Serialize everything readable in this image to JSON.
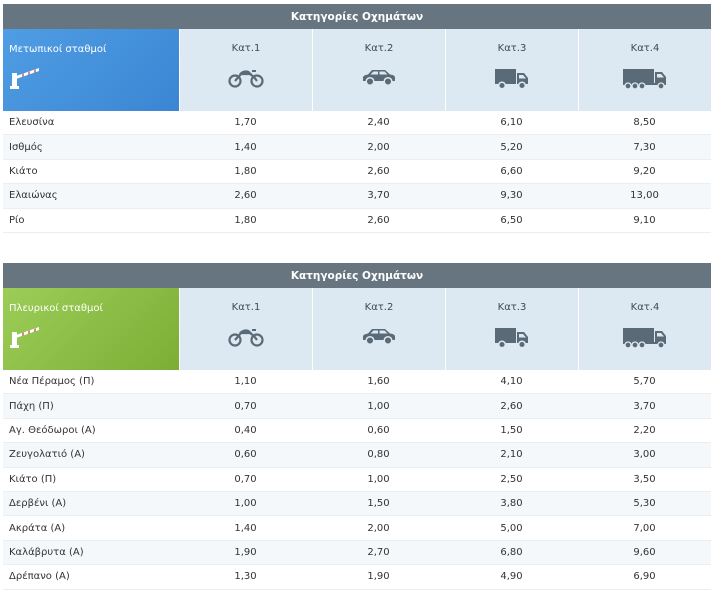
{
  "tables": [
    {
      "title": "Κατηγορίες Οχημάτων",
      "station_type": "Μετωπικοί σταθμοί",
      "categories": [
        "Κατ.1",
        "Κατ.2",
        "Κατ.3",
        "Κατ.4"
      ],
      "icons": [
        "barrier-icon",
        "motorcycle-icon",
        "car-icon",
        "truck-icon",
        "lorry-icon"
      ],
      "rows": [
        {
          "name": "Ελευσίνα",
          "values": [
            "1,70",
            "2,40",
            "6,10",
            "8,50"
          ]
        },
        {
          "name": "Ισθμός",
          "values": [
            "1,40",
            "2,00",
            "5,20",
            "7,30"
          ]
        },
        {
          "name": "Κιάτο",
          "values": [
            "1,80",
            "2,60",
            "6,60",
            "9,20"
          ]
        },
        {
          "name": "Ελαιώνας",
          "values": [
            "2,60",
            "3,70",
            "9,30",
            "13,00"
          ]
        },
        {
          "name": "Ρίο",
          "values": [
            "1,80",
            "2,60",
            "6,50",
            "9,10"
          ]
        }
      ]
    },
    {
      "title": "Κατηγορίες Οχημάτων",
      "station_type": "Πλευρικοί σταθμοί",
      "categories": [
        "Κατ.1",
        "Κατ.2",
        "Κατ.3",
        "Κατ.4"
      ],
      "icons": [
        "barrier-icon",
        "motorcycle-icon",
        "car-icon",
        "truck-icon",
        "lorry-icon"
      ],
      "rows": [
        {
          "name": "Νέα Πέραμος (Π)",
          "values": [
            "1,10",
            "1,60",
            "4,10",
            "5,70"
          ]
        },
        {
          "name": "Πάχη (Π)",
          "values": [
            "0,70",
            "1,00",
            "2,60",
            "3,70"
          ]
        },
        {
          "name": "Αγ. Θεόδωροι (Α)",
          "values": [
            "0,40",
            "0,60",
            "1,50",
            "2,20"
          ]
        },
        {
          "name": "Ζευγολατιό (Α)",
          "values": [
            "0,60",
            "0,80",
            "2,10",
            "3,00"
          ]
        },
        {
          "name": "Κιάτο (Π)",
          "values": [
            "0,70",
            "1,00",
            "2,50",
            "3,50"
          ]
        },
        {
          "name": "Δερβένι (Α)",
          "values": [
            "1,00",
            "1,50",
            "3,80",
            "5,30"
          ]
        },
        {
          "name": "Ακράτα (Α)",
          "values": [
            "1,40",
            "2,00",
            "5,00",
            "7,00"
          ]
        },
        {
          "name": "Καλάβρυτα (Α)",
          "values": [
            "1,90",
            "2,70",
            "6,80",
            "9,60"
          ]
        },
        {
          "name": "Δρέπανο (Α)",
          "values": [
            "1,30",
            "1,90",
            "4,90",
            "6,90"
          ]
        }
      ]
    }
  ],
  "colors": {
    "title_bar": "#66757f",
    "header_cell": "#dce9f3",
    "frontal_station": "#3b86d3",
    "side_station": "#7cae36",
    "icon": "#5a6a76"
  }
}
